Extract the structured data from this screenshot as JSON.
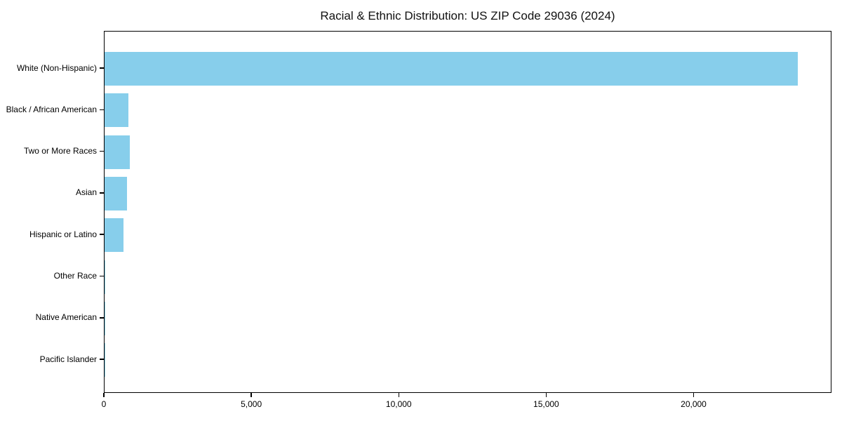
{
  "chart_data": {
    "type": "bar",
    "orientation": "horizontal",
    "title": "Racial & Ethnic Distribution: US ZIP Code 29036 (2024)",
    "xlabel": "",
    "ylabel": "",
    "categories": [
      "White (Non-Hispanic)",
      "Black / African American",
      "Two or More Races",
      "Asian",
      "Hispanic or Latino",
      "Other Race",
      "Native American",
      "Pacific Islander"
    ],
    "values": [
      23500,
      820,
      845,
      760,
      640,
      25,
      10,
      5
    ],
    "xlim": [
      0,
      24675
    ],
    "xticks": [
      0,
      5000,
      10000,
      15000,
      20000
    ],
    "xtick_labels": [
      "0",
      "5,000",
      "10,000",
      "15,000",
      "20,000"
    ],
    "bar_color": "#87CEEB",
    "text_color": "#000000",
    "spine_color": "#000000",
    "grid": false,
    "legend": false,
    "value_labels": false
  }
}
